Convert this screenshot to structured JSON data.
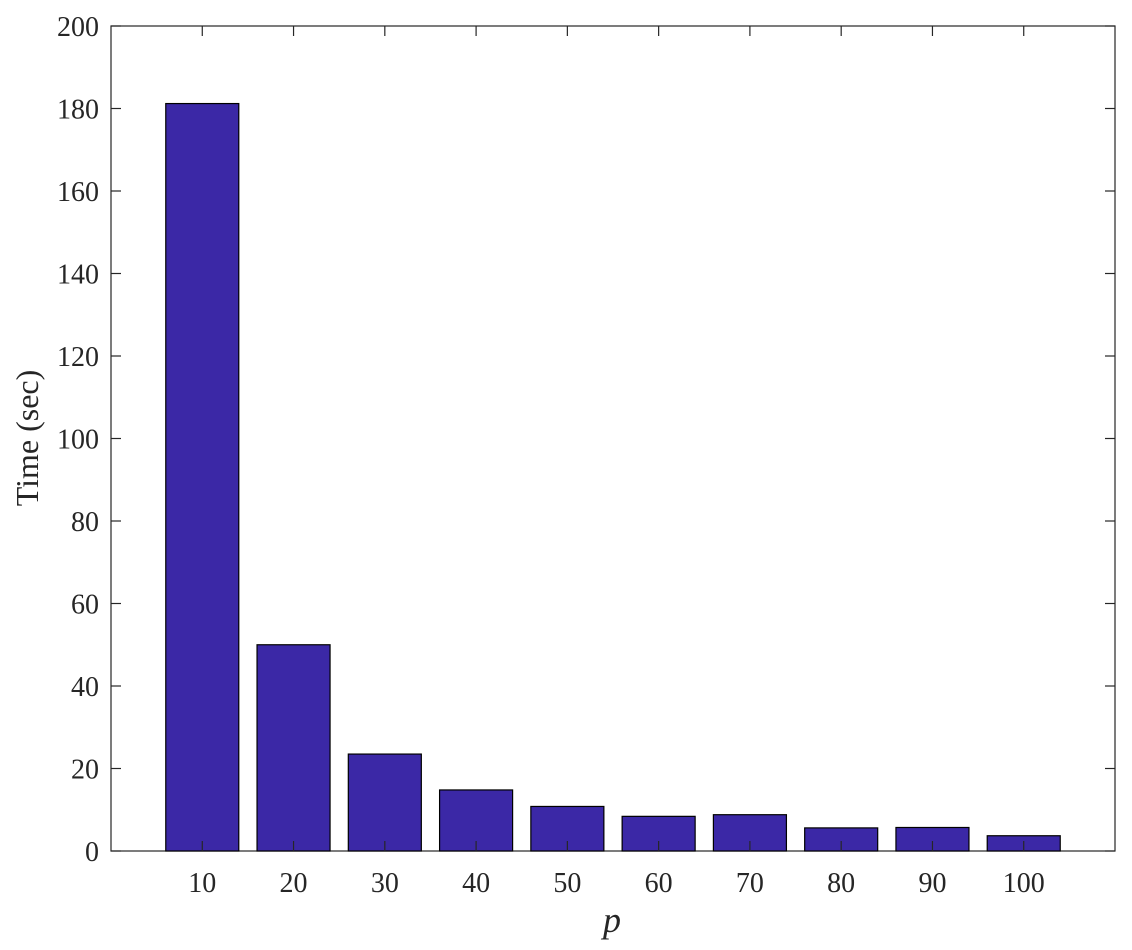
{
  "chart_data": {
    "type": "bar",
    "title": "",
    "xlabel": "p",
    "ylabel": "Time (sec)",
    "categories": [
      "10",
      "20",
      "30",
      "40",
      "50",
      "60",
      "70",
      "80",
      "90",
      "100"
    ],
    "values": [
      181.2,
      50,
      23.5,
      14.8,
      10.8,
      8.4,
      8.8,
      5.6,
      5.7,
      3.7
    ],
    "ylim": [
      0,
      200
    ],
    "yticks": [
      0,
      20,
      40,
      60,
      80,
      100,
      120,
      140,
      160,
      180,
      200
    ],
    "ytick_labels": [
      "0",
      "20",
      "40",
      "60",
      "80",
      "100",
      "120",
      "140",
      "160",
      "180",
      "200"
    ],
    "grid": false,
    "bar_color": "#3b28a6",
    "bar_edge_color": "#000000"
  }
}
